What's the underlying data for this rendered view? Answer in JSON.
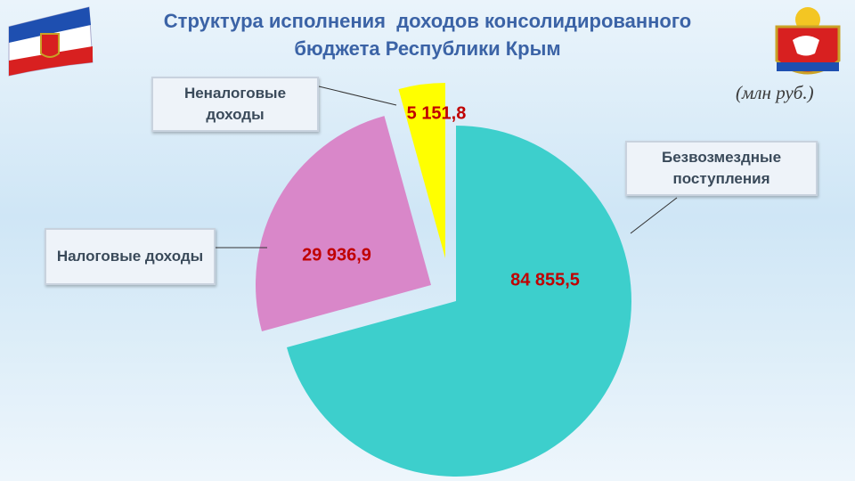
{
  "chart_data": {
    "type": "pie",
    "title": [
      "Структура исполнения  доходов консолидированного",
      "бюджета Республики Крым"
    ],
    "unit": "(млн руб.)",
    "categories": [
      "Безвозмездные поступления",
      "Налоговые доходы",
      "Неналоговые доходы"
    ],
    "values": [
      84855.5,
      29936.9,
      5151.8
    ],
    "value_labels": [
      "84 855,5",
      "29 936,9",
      "5 151,8"
    ],
    "colors": [
      "#3dcfcc",
      "#d987c9",
      "#ffff00"
    ]
  }
}
